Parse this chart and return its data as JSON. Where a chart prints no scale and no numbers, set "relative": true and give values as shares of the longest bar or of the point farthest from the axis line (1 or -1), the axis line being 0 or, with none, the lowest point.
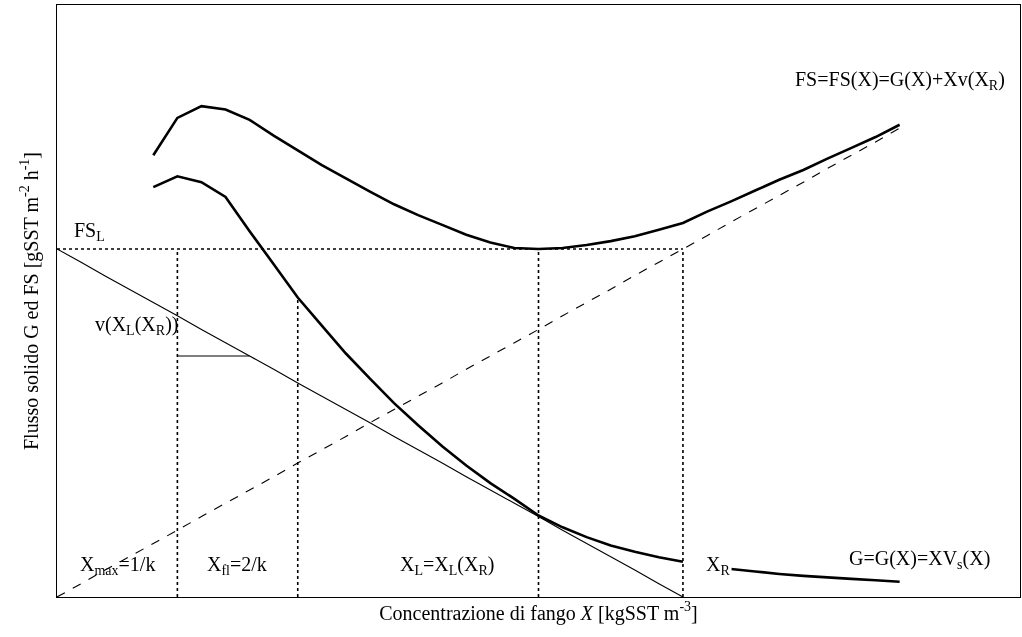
{
  "chart_data": {
    "type": "line",
    "relative": true,
    "xlabel": "Concentrazione di fango X [kgSST m$^{-3}$]",
    "ylabel": "Flusso solido G ed FS [gSST m$^{-2}$ h$^{-1}$]",
    "legend": false,
    "marker": "none",
    "line_style": "solid",
    "categories": [
      null,
      null,
      null,
      null,
      null,
      null,
      null,
      null,
      null,
      null,
      null,
      null,
      null,
      null,
      null,
      null,
      null,
      null,
      null,
      null,
      null,
      null,
      null,
      null,
      null,
      null,
      null,
      null,
      null,
      null,
      null,
      null,
      null,
      null,
      null,
      null,
      null,
      null,
      null,
      null,
      null
    ],
    "series": [
      {
        "name": "FS=FS(X)=G(X)+Xv(X$_{R}$)",
        "color": "#000000",
        "values": [
          null,
          null,
          null,
          null,
          0.9,
          0.976,
          1.0,
          0.993,
          0.972,
          0.94,
          0.91,
          0.88,
          0.853,
          0.826,
          0.8,
          0.778,
          0.758,
          0.738,
          0.722,
          0.711,
          0.709,
          0.711,
          0.717,
          0.725,
          0.735,
          0.748,
          0.762,
          0.785,
          0.806,
          0.828,
          0.85,
          0.87,
          0.893,
          0.915,
          0.937,
          0.962,
          null,
          null,
          null,
          null,
          null
        ]
      },
      {
        "name": "G=G(X)=XV$_{s}$(X)",
        "color": "#000000",
        "values": [
          null,
          null,
          null,
          null,
          0.835,
          0.857,
          0.845,
          0.815,
          0.745,
          0.678,
          0.61,
          0.553,
          0.496,
          0.445,
          0.395,
          0.35,
          0.307,
          0.268,
          0.232,
          0.2,
          0.166,
          0.142,
          0.122,
          0.105,
          0.092,
          0.081,
          0.072,
          null,
          0.057,
          0.052,
          0.047,
          0.043,
          0.04,
          0.037,
          0.034,
          0.031,
          null,
          null,
          null,
          null,
          null
        ]
      },
      {
        "color": "#000000",
        "line_style": "dashed",
        "values": [
          0,
          0.027,
          0.055,
          0.082,
          0.109,
          0.136,
          0.164,
          0.191,
          0.218,
          0.245,
          0.273,
          0.3,
          0.327,
          0.355,
          0.382,
          0.409,
          0.436,
          0.464,
          0.491,
          0.518,
          0.545,
          0.573,
          0.6,
          0.627,
          0.655,
          0.682,
          0.709,
          0.736,
          0.764,
          0.791,
          0.818,
          0.845,
          0.873,
          0.9,
          0.927,
          0.955,
          null,
          null,
          null,
          null,
          null
        ]
      },
      {
        "color": "#000000",
        "values": [
          0.709,
          0.682,
          0.654,
          0.627,
          0.6,
          0.573,
          0.545,
          0.518,
          0.491,
          0.464,
          0.436,
          0.409,
          0.382,
          0.355,
          0.327,
          0.3,
          0.273,
          0.245,
          0.218,
          0.191,
          0.164,
          0.136,
          0.109,
          0.082,
          0.055,
          0.027,
          0,
          null,
          null,
          null,
          null,
          null,
          null,
          null,
          null,
          null,
          null,
          null,
          null,
          null,
          null
        ]
      },
      {
        "color": "#000000",
        "values": [
          null,
          null,
          null,
          null,
          null,
          0.491,
          0.491,
          0.491,
          0.491,
          null,
          null,
          null,
          null,
          null,
          null,
          null,
          null,
          null,
          null,
          null,
          null,
          null,
          null,
          null,
          null,
          null,
          null,
          null,
          null,
          null,
          null,
          null,
          null,
          null,
          null,
          null,
          null,
          null,
          null,
          null,
          null
        ]
      },
      {
        "color": "#000000",
        "line_style": "dotted",
        "values": [
          0.709,
          0.709,
          0.709,
          0.709,
          0.709,
          0.709,
          0.709,
          0.709,
          0.709,
          0.709,
          0.709,
          0.709,
          0.709,
          0.709,
          0.709,
          0.709,
          0.709,
          0.709,
          0.709,
          0.709,
          0.709,
          0.709,
          0.709,
          0.709,
          0.709,
          0.709,
          0.709,
          null,
          null,
          null,
          null,
          null,
          null,
          null,
          null,
          null,
          null,
          null,
          null,
          null,
          null
        ]
      }
    ],
    "annotations": [
      "FS$_{L}$",
      "v(X$_{L}$(X$_{R}$))",
      "X$_{max}$=1/k",
      "X$_{fl}$=2/k",
      "X$_{L}$=X$_{L}$(X$_{R}$)",
      "X$_{R}$"
    ]
  }
}
